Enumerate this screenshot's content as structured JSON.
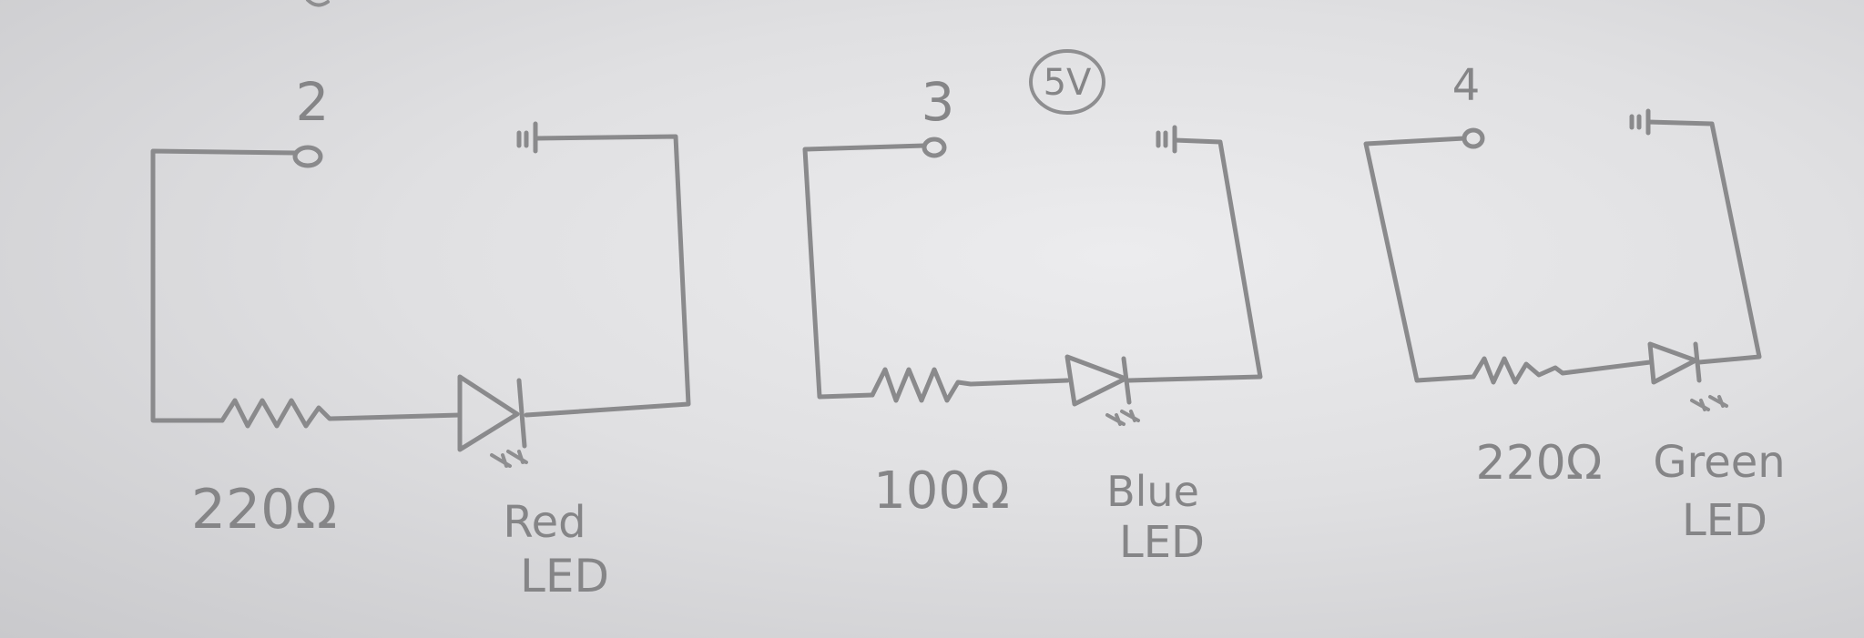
{
  "supply_label": "5V",
  "circuits": [
    {
      "pin": "2",
      "resistor": "220Ω",
      "led_line1": "Red",
      "led_line2": "LED"
    },
    {
      "pin": "3",
      "resistor": "100Ω",
      "led_line1": "Blue",
      "led_line2": "LED"
    },
    {
      "pin": "4",
      "resistor": "220Ω",
      "led_line1": "Green",
      "led_line2": "LED"
    }
  ],
  "colors": {
    "paper": "#e6e6e8",
    "pencil": "#8a8a8c"
  }
}
